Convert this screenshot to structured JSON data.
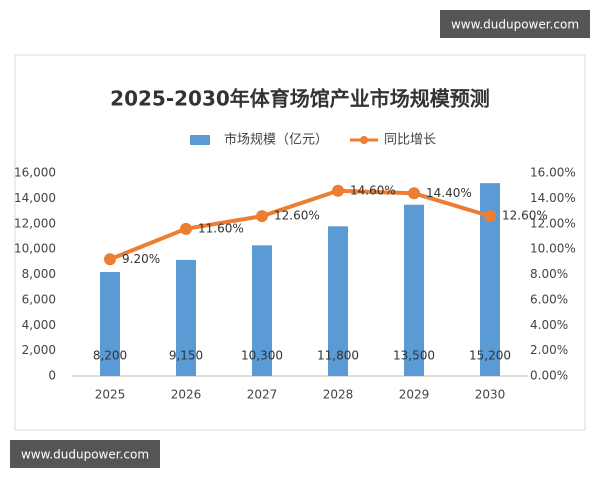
{
  "header": {
    "site": "www.dudupower.com"
  },
  "footer": {
    "site": "www.dudupower.com"
  },
  "chart_data": {
    "type": "bar-line",
    "title": "2025-2030年体育场馆产业市场规模预测",
    "categories": [
      "2025",
      "2026",
      "2027",
      "2028",
      "2029",
      "2030"
    ],
    "series": [
      {
        "name": "市场规模（亿元）",
        "color": "#5b9bd5",
        "type": "bar",
        "values": [
          8200,
          9150,
          10300,
          11800,
          13500,
          15200
        ],
        "value_labels": [
          "8,200",
          "9,150",
          "10,300",
          "11,800",
          "13,500",
          "15,200"
        ]
      },
      {
        "name": "同比增长",
        "color": "#ed7d31",
        "type": "line",
        "axis": "y2",
        "values": [
          9.2,
          11.6,
          12.6,
          14.6,
          14.4,
          12.6
        ],
        "value_labels": [
          "9.20%",
          "11.60%",
          "12.60%",
          "14.60%",
          "14.40%",
          "12.60%"
        ]
      }
    ],
    "ylim": [
      0,
      16000
    ],
    "yticks": [
      0,
      {
        "value": 2000,
        "label": "2,000"
      },
      {
        "value": 4000,
        "label": "4,000"
      },
      {
        "value": 6000,
        "label": "6,000"
      },
      {
        "value": 8000,
        "label": "8,000"
      },
      {
        "value": 10000,
        "label": "10,000"
      },
      {
        "value": 12000,
        "label": "12,000"
      },
      {
        "value": 14000,
        "label": "14,000"
      },
      {
        "value": 16000,
        "label": "16,000"
      }
    ],
    "y2lim": [
      0,
      16
    ],
    "y2ticks": [
      {
        "value": 0,
        "label": "0.00%"
      },
      {
        "value": 2,
        "label": "2.00%"
      },
      {
        "value": 4,
        "label": "4.00%"
      },
      {
        "value": 6,
        "label": "6.00%"
      },
      {
        "value": 8,
        "label": "8.00%"
      },
      {
        "value": 10,
        "label": "10.00%"
      },
      {
        "value": 12,
        "label": "12.00%"
      },
      {
        "value": 14,
        "label": "14.00%"
      },
      {
        "value": 16,
        "label": "16.00%"
      }
    ],
    "legend": "top",
    "grid": false
  }
}
